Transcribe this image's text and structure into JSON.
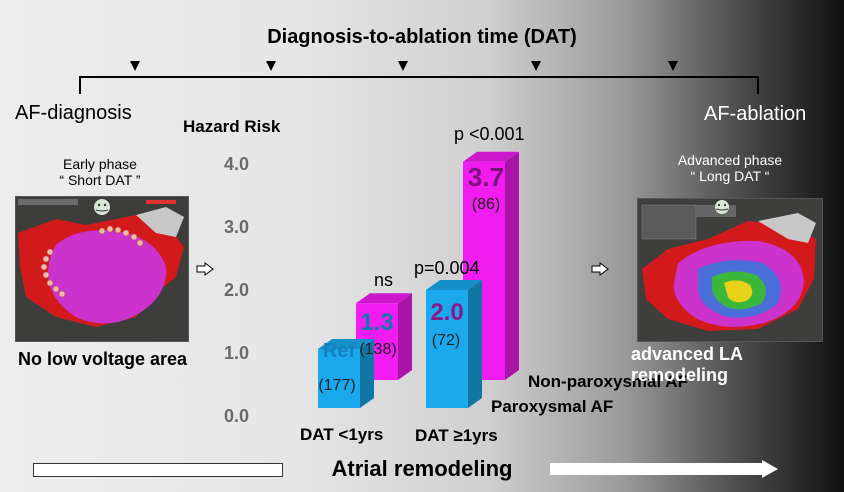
{
  "header": {
    "title": "Diagnosis-to-ablation time (DAT)",
    "left_endpoint": "AF-diagnosis",
    "right_endpoint": "AF-ablation"
  },
  "left_panel": {
    "phase_line1": "Early phase",
    "phase_line2": "“ Short DAT ”",
    "caption": "No low voltage area"
  },
  "right_panel": {
    "phase_line1": "Advanced phase",
    "phase_line2": "“ Long DAT “",
    "caption": "advanced LA remodeling"
  },
  "footer": {
    "label": "Atrial remodeling"
  },
  "chart_data": {
    "type": "bar",
    "ylabel": "Hazard Risk",
    "ylim": [
      0,
      4.0
    ],
    "yticks": [
      "4.0",
      "3.0",
      "2.0",
      "1.0",
      "0.0"
    ],
    "categories": [
      "DAT <1yrs",
      "DAT ≥1yrs"
    ],
    "series": [
      {
        "name": "Paroxysmal AF",
        "color": "#19a9ec",
        "values": [
          1.0,
          2.0
        ]
      },
      {
        "name": "Non-paroxysmal AF",
        "color": "#f01cf0",
        "values": [
          1.3,
          3.7
        ]
      }
    ],
    "bars": [
      {
        "category": "DAT <1yrs",
        "series": "Paroxysmal AF",
        "value": 1.0,
        "value_label": "Ref",
        "n_label": "(177)"
      },
      {
        "category": "DAT <1yrs",
        "series": "Non-paroxysmal AF",
        "value": 1.3,
        "value_label": "1.3",
        "n_label": "(138)"
      },
      {
        "category": "DAT ≥1yrs",
        "series": "Paroxysmal AF",
        "value": 2.0,
        "value_label": "2.0",
        "n_label": "(72)"
      },
      {
        "category": "DAT ≥1yrs",
        "series": "Non-paroxysmal AF",
        "value": 3.7,
        "value_label": "3.7",
        "n_label": "(86)"
      }
    ],
    "annotations": [
      "ns",
      "p=0.004",
      "p <0.001"
    ]
  }
}
